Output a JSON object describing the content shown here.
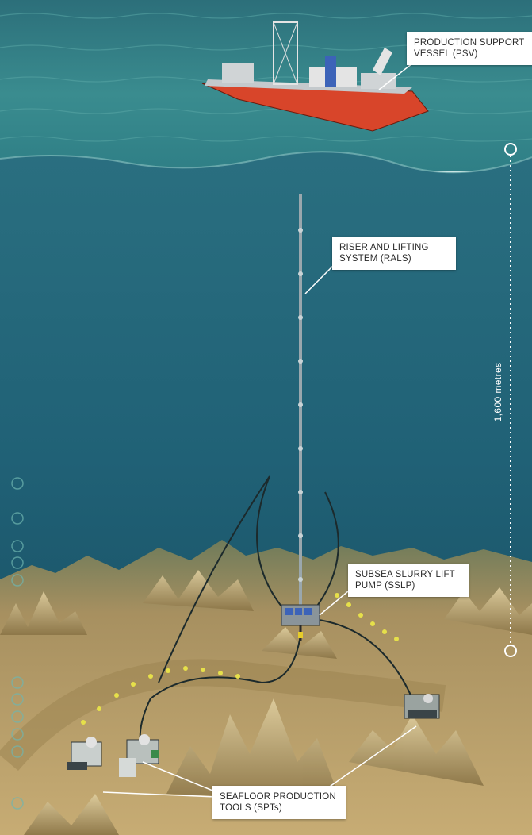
{
  "callouts": {
    "psv": {
      "line1": "PRODUCTION SUPPORT",
      "line2": "VESSEL (PSV)"
    },
    "rals": {
      "line1": "RISER AND LIFTING",
      "line2": "SYSTEM (RALS)"
    },
    "sslp": {
      "line1": "SUBSEA SLURRY LIFT",
      "line2": "PUMP (SSLP)"
    },
    "spt": {
      "line1": "SEAFLOOR PRODUCTION",
      "line2": "TOOLS (SPTs)"
    }
  },
  "depth": {
    "label": "1,600 metres"
  },
  "colors": {
    "sea_surface": "#2f7f86",
    "deep_water": "#1f5f72",
    "seafloor": "#b59a5e",
    "hull": "#d8452a",
    "dots": "#e6e04a"
  }
}
